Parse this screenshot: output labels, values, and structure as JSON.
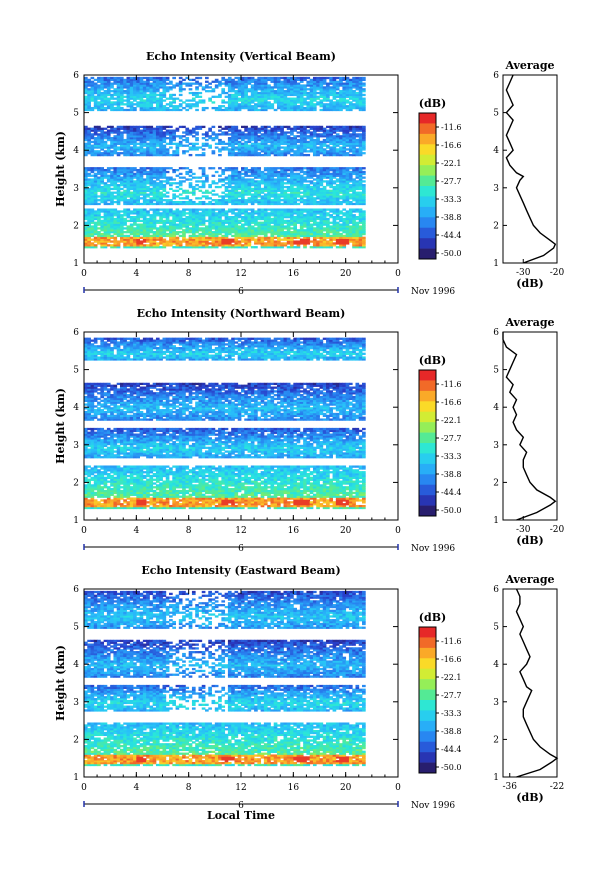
{
  "chart_data": [
    {
      "type": "heatmap",
      "title": "Echo Intensity (Vertical Beam)",
      "ylabel": "Height (km)",
      "xlim": [
        0,
        24
      ],
      "ylim": [
        1,
        6
      ],
      "x_ticks": [
        "0",
        "4",
        "8",
        "12",
        "16",
        "20",
        "0"
      ],
      "y_ticks": [
        "1",
        "2",
        "3",
        "4",
        "5",
        "6"
      ],
      "day_label": "6",
      "date_label": "Nov 1996",
      "colorbar": {
        "unit": "(dB)",
        "labels": [
          "-11.6",
          "-16.6",
          "-22.1",
          "-27.7",
          "-33.3",
          "-38.8",
          "-44.4",
          "-50.0"
        ]
      },
      "layers": [
        {
          "bottom": 1.4,
          "top": 2.4,
          "peak_db": -13
        },
        {
          "bottom": 2.5,
          "top": 3.5,
          "peak_db": -30
        },
        {
          "bottom": 3.8,
          "top": 4.6,
          "peak_db": -34
        },
        {
          "bottom": 5.0,
          "top": 5.9,
          "peak_db": -31
        }
      ],
      "average_profile": {
        "title": "Average",
        "xlabel": "(dB)",
        "x_ticks": [
          "-30",
          "-20"
        ],
        "xlim": [
          -36,
          -20
        ],
        "height": [
          1.0,
          1.2,
          1.4,
          1.5,
          1.6,
          1.8,
          2.0,
          2.2,
          2.4,
          2.6,
          2.8,
          3.0,
          3.2,
          3.3,
          3.4,
          3.6,
          3.8,
          4.0,
          4.2,
          4.4,
          4.6,
          4.8,
          5.0,
          5.2,
          5.4,
          5.6,
          5.8,
          6.0
        ],
        "value": [
          -30,
          -24,
          -21,
          -20.5,
          -22,
          -25,
          -27,
          -28,
          -29,
          -30,
          -31,
          -32,
          -31,
          -30,
          -32,
          -34,
          -35,
          -33,
          -34,
          -35,
          -34,
          -33,
          -35,
          -33,
          -34,
          -35,
          -34,
          -33
        ]
      }
    },
    {
      "type": "heatmap",
      "title": "Echo Intensity (Northward Beam)",
      "ylabel": "Height (km)",
      "xlim": [
        0,
        24
      ],
      "ylim": [
        1,
        6
      ],
      "x_ticks": [
        "0",
        "4",
        "8",
        "12",
        "16",
        "20",
        "0"
      ],
      "y_ticks": [
        "1",
        "2",
        "3",
        "4",
        "5",
        "6"
      ],
      "day_label": "6",
      "date_label": "Nov 1996",
      "colorbar": {
        "unit": "(dB)",
        "labels": [
          "-11.6",
          "-16.6",
          "-22.1",
          "-27.7",
          "-33.3",
          "-38.8",
          "-44.4",
          "-50.0"
        ]
      },
      "layers": [
        {
          "bottom": 1.3,
          "top": 2.4,
          "peak_db": -13
        },
        {
          "bottom": 2.6,
          "top": 3.4,
          "peak_db": -32
        },
        {
          "bottom": 3.6,
          "top": 4.6,
          "peak_db": -34
        },
        {
          "bottom": 5.2,
          "top": 5.8,
          "peak_db": -32
        }
      ],
      "average_profile": {
        "title": "Average",
        "xlabel": "(dB)",
        "x_ticks": [
          "-30",
          "-20"
        ],
        "xlim": [
          -36,
          -20
        ],
        "height": [
          1.0,
          1.2,
          1.4,
          1.5,
          1.6,
          1.8,
          2.0,
          2.2,
          2.4,
          2.6,
          2.8,
          3.0,
          3.2,
          3.4,
          3.6,
          3.8,
          4.0,
          4.2,
          4.4,
          4.6,
          4.8,
          5.0,
          5.2,
          5.4,
          5.6,
          5.8,
          6.0
        ],
        "value": [
          -32,
          -26,
          -22,
          -20.5,
          -22,
          -26,
          -28,
          -29,
          -30,
          -30,
          -29,
          -31,
          -30,
          -32,
          -33,
          -32,
          -33,
          -32,
          -34,
          -33,
          -35,
          -34,
          -33,
          -32,
          -35,
          -36,
          -36
        ]
      }
    },
    {
      "type": "heatmap",
      "title": "Echo Intensity (Eastward Beam)",
      "ylabel": "Height (km)",
      "xlabel": "Local Time",
      "xlim": [
        0,
        24
      ],
      "ylim": [
        1,
        6
      ],
      "x_ticks": [
        "0",
        "4",
        "8",
        "12",
        "16",
        "20",
        "0"
      ],
      "y_ticks": [
        "1",
        "2",
        "3",
        "4",
        "5",
        "6"
      ],
      "day_label": "6",
      "date_label": "Nov 1996",
      "colorbar": {
        "unit": "(dB)",
        "labels": [
          "-11.6",
          "-16.6",
          "-22.1",
          "-27.7",
          "-33.3",
          "-38.8",
          "-44.4",
          "-50.0"
        ]
      },
      "layers": [
        {
          "bottom": 1.3,
          "top": 2.4,
          "peak_db": -13
        },
        {
          "bottom": 2.7,
          "top": 3.4,
          "peak_db": -31
        },
        {
          "bottom": 3.6,
          "top": 4.6,
          "peak_db": -34
        },
        {
          "bottom": 4.9,
          "top": 5.9,
          "peak_db": -33
        }
      ],
      "average_profile": {
        "title": "Average",
        "xlabel": "(dB)",
        "x_ticks": [
          "-36",
          "-22"
        ],
        "xlim": [
          -38,
          -22
        ],
        "height": [
          1.0,
          1.2,
          1.4,
          1.5,
          1.6,
          1.8,
          2.0,
          2.2,
          2.4,
          2.6,
          2.8,
          3.0,
          3.2,
          3.3,
          3.4,
          3.6,
          3.8,
          4.0,
          4.2,
          4.4,
          4.6,
          4.8,
          5.0,
          5.2,
          5.4,
          5.6,
          5.8,
          6.0
        ],
        "value": [
          -34,
          -27,
          -23.5,
          -22,
          -24,
          -27,
          -29,
          -30,
          -31,
          -32,
          -32,
          -31,
          -30,
          -29.5,
          -31,
          -32,
          -33,
          -31,
          -30,
          -31,
          -32,
          -33,
          -32,
          -33,
          -34,
          -33,
          -33,
          -34
        ]
      }
    }
  ]
}
